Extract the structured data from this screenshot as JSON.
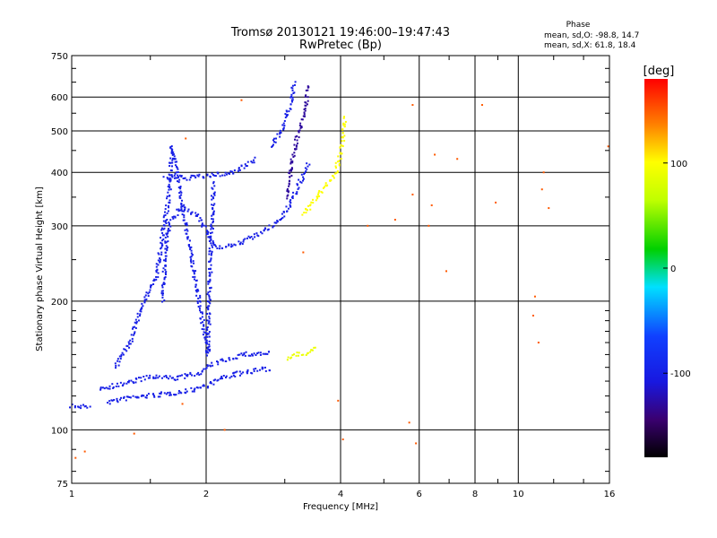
{
  "chart_data": {
    "type": "scatter",
    "title": "Tromsø 20130121 19:46:00–19:47:43",
    "subtitle": "RwPretec (Bp)",
    "xlabel": "Frequency [MHz]",
    "ylabel": "Stationary phase Virtual Height [km]",
    "x_scale": "log",
    "y_scale": "log",
    "xlim": [
      1,
      16
    ],
    "ylim": [
      75,
      750
    ],
    "x_ticks": [
      "1",
      "2",
      "4",
      "6",
      "8",
      "10",
      "16"
    ],
    "y_ticks": [
      "75",
      "100",
      "200",
      "300",
      "400",
      "500",
      "600",
      "750"
    ],
    "grid": true,
    "phase_box": {
      "title": "Phase",
      "line_o": "mean, sd,O: -98.8, 14.7",
      "line_x": "mean, sd,X:  61.8, 18.4"
    },
    "colorbar": {
      "label": "[deg]",
      "range": [
        -180,
        180
      ],
      "ticks": [
        "100",
        "0",
        "-100"
      ],
      "tick_values": [
        100,
        0,
        -100
      ]
    },
    "traces": [
      {
        "name": "",
        "phase": -100,
        "points": [
          [
            1.0,
            114
          ],
          [
            1.05,
            113
          ],
          [
            1.1,
            114
          ]
        ]
      },
      {
        "name": "",
        "phase": -100,
        "points": [
          [
            1.2,
            116
          ],
          [
            1.35,
            119
          ],
          [
            1.6,
            121
          ],
          [
            1.8,
            123
          ],
          [
            2.0,
            127
          ],
          [
            2.2,
            133
          ],
          [
            2.5,
            137
          ],
          [
            2.8,
            139
          ]
        ]
      },
      {
        "name": "",
        "phase": -100,
        "points": [
          [
            1.15,
            125
          ],
          [
            1.3,
            128
          ],
          [
            1.5,
            133
          ],
          [
            1.7,
            132
          ],
          [
            1.9,
            135
          ],
          [
            2.1,
            143
          ],
          [
            2.4,
            150
          ],
          [
            2.8,
            151
          ]
        ]
      },
      {
        "name": "",
        "phase": -100,
        "points": [
          [
            1.6,
            200
          ],
          [
            1.62,
            260
          ],
          [
            1.65,
            300
          ],
          [
            1.75,
            330
          ],
          [
            1.9,
            320
          ],
          [
            2.1,
            268
          ],
          [
            2.3,
            270
          ],
          [
            2.6,
            285
          ],
          [
            2.9,
            305
          ],
          [
            3.1,
            340
          ],
          [
            3.25,
            380
          ],
          [
            3.4,
            420
          ]
        ]
      },
      {
        "name": "",
        "phase": -100,
        "points": [
          [
            1.62,
            390
          ],
          [
            1.8,
            388
          ],
          [
            2.0,
            392
          ],
          [
            2.3,
            400
          ],
          [
            2.6,
            430
          ]
        ]
      },
      {
        "name": "",
        "phase": -100,
        "points": [
          [
            2.8,
            460
          ],
          [
            3.0,
            520
          ],
          [
            3.1,
            590
          ],
          [
            3.15,
            650
          ]
        ]
      },
      {
        "name": "",
        "phase": -130,
        "points": [
          [
            3.05,
            350
          ],
          [
            3.1,
            420
          ],
          [
            3.2,
            480
          ],
          [
            3.3,
            540
          ],
          [
            3.4,
            640
          ]
        ]
      },
      {
        "name": "",
        "phase": 100,
        "points": [
          [
            3.3,
            320
          ],
          [
            3.5,
            345
          ],
          [
            3.7,
            370
          ],
          [
            3.9,
            400
          ],
          [
            4.05,
            470
          ],
          [
            4.1,
            540
          ]
        ]
      },
      {
        "name": "",
        "phase": 90,
        "points": [
          [
            3.05,
            147
          ],
          [
            3.2,
            150
          ],
          [
            3.4,
            152
          ],
          [
            3.55,
            155
          ]
        ]
      },
      {
        "name": "",
        "phase": -100,
        "points": [
          [
            1.25,
            140
          ],
          [
            1.35,
            160
          ],
          [
            1.45,
            200
          ],
          [
            1.55,
            230
          ],
          [
            1.6,
            290
          ],
          [
            1.65,
            350
          ],
          [
            1.68,
            460
          ],
          [
            2.02,
            150
          ],
          [
            2.03,
            200
          ],
          [
            2.05,
            260
          ],
          [
            2.06,
            300
          ],
          [
            2.08,
            380
          ]
        ]
      },
      {
        "name": "",
        "phase": 150,
        "points": [
          [
            1.02,
            86
          ],
          [
            1.07,
            89
          ],
          [
            1.38,
            98
          ],
          [
            1.77,
            115
          ],
          [
            2.2,
            100
          ],
          [
            2.4,
            590
          ],
          [
            3.3,
            260
          ],
          [
            3.95,
            117
          ],
          [
            4.05,
            95
          ],
          [
            5.3,
            310
          ],
          [
            5.7,
            104
          ],
          [
            5.9,
            93
          ],
          [
            6.3,
            300
          ],
          [
            6.5,
            440
          ],
          [
            6.9,
            235
          ],
          [
            7.3,
            430
          ],
          [
            8.3,
            575
          ],
          [
            8.9,
            340
          ],
          [
            10.9,
            205
          ],
          [
            11.3,
            365
          ],
          [
            11.7,
            330
          ],
          [
            15.9,
            460
          ],
          [
            10.8,
            185
          ],
          [
            11.1,
            160
          ],
          [
            5.8,
            575
          ],
          [
            5.8,
            355
          ],
          [
            4.6,
            300
          ],
          [
            11.4,
            400
          ],
          [
            6.4,
            335
          ],
          [
            1.8,
            480
          ]
        ]
      }
    ]
  }
}
